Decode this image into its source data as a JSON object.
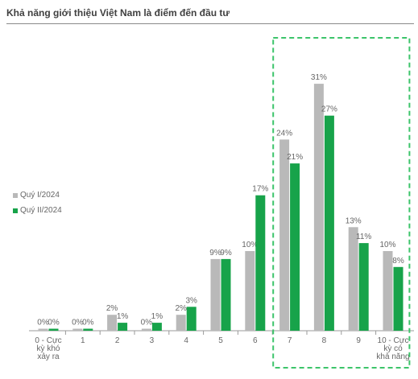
{
  "title": "Khả năng giới thiệu Việt Nam là điểm đến đầu tư",
  "colors": {
    "q1": "#b9b9b9",
    "q2": "#17a34a",
    "highlight_border": "#3cc46a",
    "axis": "#9a9a9a",
    "text": "#666666"
  },
  "chart_data": {
    "type": "bar",
    "title": "Khả năng giới thiệu Việt Nam là điểm đến đầu tư",
    "categories": [
      [
        "0 - Cực",
        "kỳ khó",
        "xảy ra"
      ],
      [
        "1"
      ],
      [
        "2"
      ],
      [
        "3"
      ],
      [
        "4"
      ],
      [
        "5"
      ],
      [
        "6"
      ],
      [
        "7"
      ],
      [
        "8"
      ],
      [
        "9"
      ],
      [
        "10 - Cực",
        "kỳ có",
        "khả năng"
      ]
    ],
    "series": [
      {
        "name": "Quý I/2024",
        "values": [
          0,
          0,
          2,
          0,
          2,
          9,
          10,
          24,
          31,
          13,
          10
        ],
        "labels": [
          "0%",
          "0%",
          "2%",
          "0%",
          "2%",
          "9%",
          "10%",
          "24%",
          "31%",
          "13%",
          "10%"
        ]
      },
      {
        "name": "Quý II/2024",
        "values": [
          0,
          0,
          1,
          1,
          3,
          9,
          17,
          21,
          27,
          11,
          8
        ],
        "labels": [
          "0%",
          "0%",
          "1%",
          "1%",
          "3%",
          "9%",
          "17%",
          "21%",
          "27%",
          "11%",
          "8%"
        ]
      }
    ],
    "highlighted_categories": [
      7,
      8,
      9,
      10
    ],
    "legend_position": "left",
    "ylim": [
      0,
      31
    ],
    "grid": false
  }
}
